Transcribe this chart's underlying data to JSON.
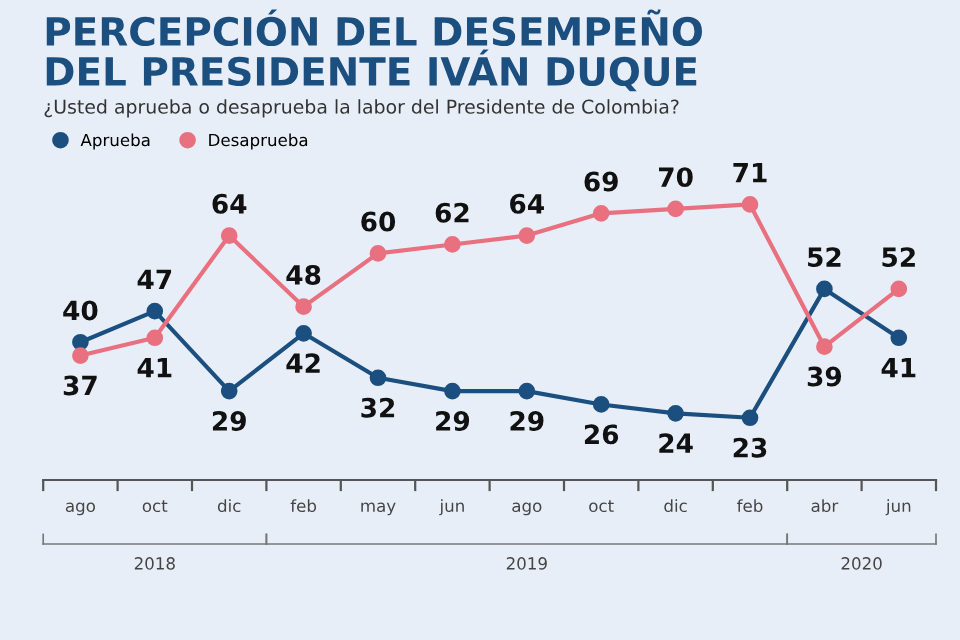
{
  "chart_data": {
    "type": "line",
    "title": "PERCEPCIÓN DEL DESEMPEÑO\nDEL PRESIDENTE IVÁN DUQUE",
    "subtitle": "¿Usted aprueba o desaprueba la labor del Presidente de Colombia?",
    "categories": [
      "ago",
      "oct",
      "dic",
      "feb",
      "may",
      "jun",
      "ago",
      "oct",
      "dic",
      "feb",
      "abr",
      "jun"
    ],
    "series": [
      {
        "name": "Aprueba",
        "color": "#1b4f7f",
        "values": [
          40,
          47,
          29,
          42,
          32,
          29,
          29,
          26,
          24,
          23,
          52,
          41
        ]
      },
      {
        "name": "Desaprueba",
        "color": "#e8707f",
        "values": [
          37,
          41,
          64,
          48,
          60,
          62,
          64,
          69,
          70,
          71,
          39,
          52
        ]
      }
    ],
    "annotations": [
      "2018",
      "2019",
      "2020"
    ],
    "marker": "circle",
    "line_style": "solid",
    "data_labels": true,
    "grid": false,
    "legend": "top left"
  }
}
